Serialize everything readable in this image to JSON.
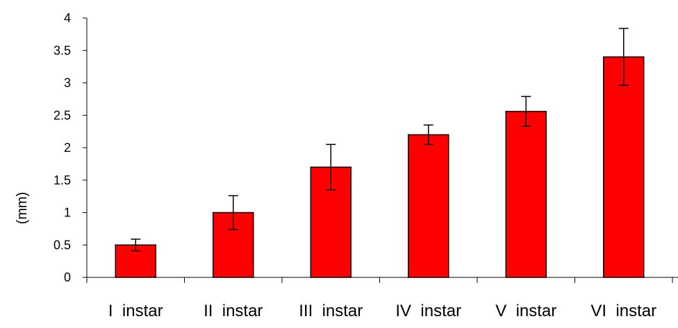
{
  "chart_data": {
    "type": "bar",
    "title": "",
    "xlabel": "",
    "ylabel": "(mm)",
    "categories": [
      "I  instar",
      "II  instar",
      "III  instar",
      "IV  instar",
      "V  instar",
      "VI  instar"
    ],
    "values": [
      0.5,
      1.0,
      1.7,
      2.2,
      2.56,
      3.4
    ],
    "error_bars": [
      0.09,
      0.26,
      0.35,
      0.15,
      0.23,
      0.44
    ],
    "ylim": [
      0,
      4
    ],
    "y_ticks": [
      "0",
      "0.5",
      "1",
      "1.5",
      "2",
      "2.5",
      "3",
      "3.5",
      "4"
    ],
    "grid": false,
    "legend": "none",
    "bar_color": "#ff0000",
    "bar_stroke": "#000000"
  }
}
